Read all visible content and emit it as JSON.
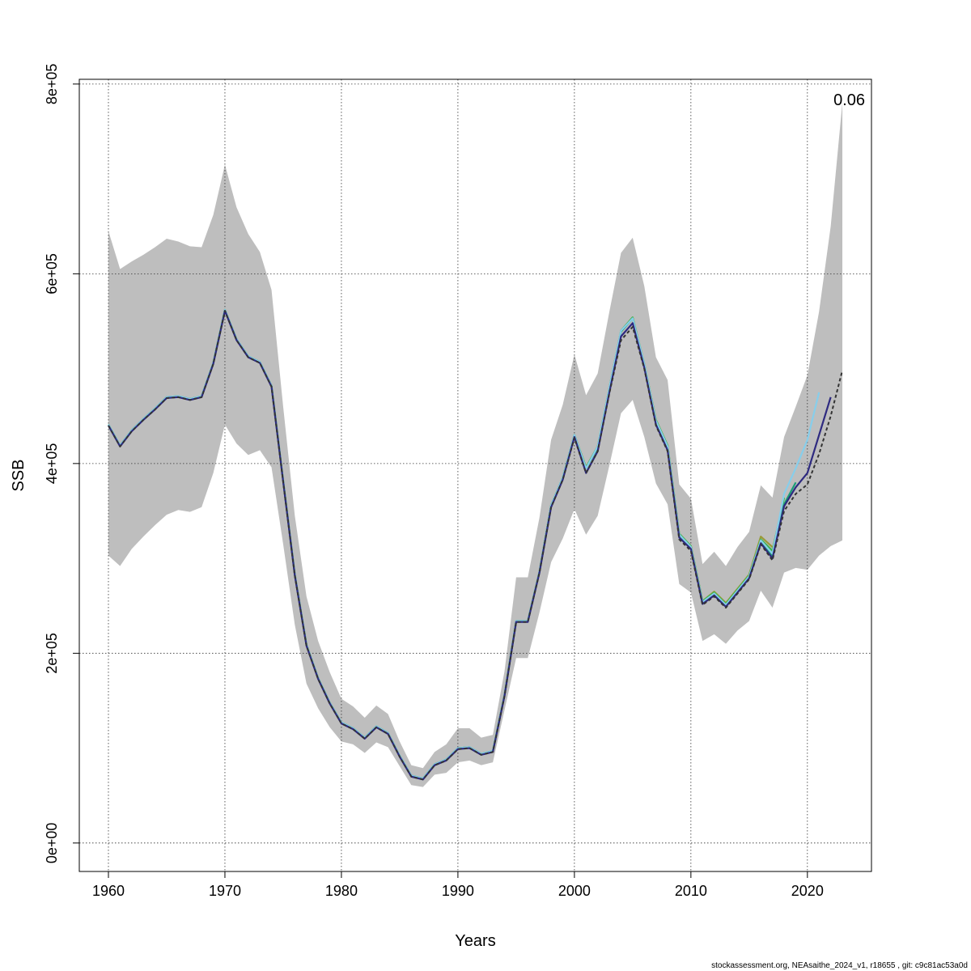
{
  "chart_data": {
    "type": "line",
    "xlabel": "Years",
    "ylabel": "SSB",
    "xlim": [
      1957.5,
      2025.5
    ],
    "ylim": [
      -30000,
      805000
    ],
    "xticks": [
      1960,
      1970,
      1980,
      1990,
      2000,
      2010,
      2020
    ],
    "yticks": [
      0,
      200000,
      400000,
      600000,
      800000
    ],
    "ytick_labels": [
      "0e+00",
      "2e+05",
      "4e+05",
      "6e+05",
      "8e+05"
    ],
    "grid": true,
    "annotation": "0.06",
    "footer": "stockassessment.org, NEAsaithe_2024_v1, r18655 , git: c9c81ac53a0d",
    "colors": {
      "band": "#bebebe",
      "base": "#333333",
      "peel1": "#2e2a80",
      "peel2": "#87ceeb",
      "peel3": "#1a9e77",
      "peel4": "#3cb44b",
      "peel5": "#9a9a3a"
    },
    "x": [
      1960,
      1961,
      1962,
      1963,
      1964,
      1965,
      1966,
      1967,
      1968,
      1969,
      1970,
      1971,
      1972,
      1973,
      1974,
      1975,
      1976,
      1977,
      1978,
      1979,
      1980,
      1981,
      1982,
      1983,
      1984,
      1985,
      1986,
      1987,
      1988,
      1989,
      1990,
      1991,
      1992,
      1993,
      1994,
      1995,
      1996,
      1997,
      1998,
      1999,
      2000,
      2001,
      2002,
      2003,
      2004,
      2005,
      2006,
      2007,
      2008,
      2009,
      2010,
      2011,
      2012,
      2013,
      2014,
      2015,
      2016,
      2017,
      2018,
      2019,
      2020,
      2021,
      2022,
      2023
    ],
    "upper": [
      645000,
      605000,
      613000,
      620000,
      628000,
      637000,
      634000,
      629000,
      628000,
      662000,
      715000,
      670000,
      642000,
      623000,
      583000,
      460000,
      345000,
      260000,
      213000,
      180000,
      152000,
      144000,
      132000,
      145000,
      136000,
      107000,
      82000,
      79000,
      96000,
      104000,
      121000,
      121000,
      111000,
      114000,
      181000,
      280000,
      280000,
      343000,
      425000,
      462000,
      515000,
      472000,
      495000,
      560000,
      622000,
      638000,
      587000,
      512000,
      488000,
      378000,
      363000,
      294000,
      307000,
      292000,
      312000,
      328000,
      377000,
      364000,
      428000,
      460000,
      493000,
      560000,
      650000,
      780000
    ],
    "lower": [
      303000,
      292000,
      310000,
      323000,
      335000,
      346000,
      351000,
      349000,
      354000,
      390000,
      441000,
      421000,
      409000,
      414000,
      396000,
      315000,
      230000,
      168000,
      142000,
      122000,
      107000,
      104000,
      95000,
      106000,
      101000,
      81000,
      61000,
      59000,
      72000,
      74000,
      85000,
      87000,
      82000,
      85000,
      140000,
      195000,
      195000,
      243000,
      296000,
      321000,
      352000,
      325000,
      345000,
      398000,
      453000,
      467000,
      428000,
      379000,
      357000,
      273000,
      264000,
      213000,
      220000,
      210000,
      224000,
      234000,
      266000,
      248000,
      285000,
      290000,
      288000,
      303000,
      313000,
      319000
    ],
    "series": [
      {
        "values": [
          440000,
          418000,
          434000,
          446000,
          457000,
          469000,
          470000,
          467000,
          470000,
          505000,
          561000,
          530000,
          512000,
          506000,
          481000,
          381000,
          282000,
          208000,
          173000,
          147000,
          126000,
          120000,
          110000,
          122000,
          115000,
          91000,
          70000,
          67000,
          82000,
          87000,
          99000,
          100000,
          93000,
          96000,
          155000,
          233000,
          233000,
          285000,
          354000,
          383000,
          427000,
          390000,
          413000,
          474000,
          530000,
          544000,
          500000,
          440000,
          413000,
          320000,
          308000,
          251000,
          260000,
          248000,
          263000,
          278000,
          315000,
          298000,
          350000,
          368000,
          378000,
          410000,
          450000,
          498000
        ]
      },
      {
        "values": [
          440000,
          418000,
          434000,
          446000,
          457000,
          469000,
          470000,
          467000,
          470000,
          505000,
          561000,
          530000,
          512000,
          506000,
          481000,
          381000,
          282000,
          208000,
          173000,
          147000,
          126000,
          120000,
          110000,
          122000,
          115000,
          91000,
          70000,
          67000,
          82000,
          87000,
          99000,
          100000,
          93000,
          96000,
          155000,
          233000,
          233000,
          285000,
          354000,
          383000,
          428000,
          390000,
          413000,
          475000,
          534000,
          548000,
          501000,
          441000,
          414000,
          322000,
          310000,
          252000,
          261000,
          249000,
          264000,
          279000,
          316000,
          300000,
          355000,
          375000,
          390000,
          430000,
          470000,
          null
        ]
      },
      {
        "values": [
          441000,
          419000,
          435000,
          447000,
          458000,
          470000,
          471000,
          468000,
          471000,
          506000,
          562000,
          531000,
          513000,
          507000,
          482000,
          382000,
          283000,
          209000,
          174000,
          148000,
          127000,
          121000,
          111000,
          123000,
          116000,
          92000,
          71000,
          68000,
          83000,
          88000,
          100000,
          101000,
          94000,
          97000,
          156000,
          234000,
          234000,
          286000,
          356000,
          385000,
          430000,
          395000,
          418000,
          480000,
          540000,
          553000,
          505000,
          445000,
          418000,
          325000,
          312000,
          254000,
          263000,
          251000,
          266000,
          281000,
          319000,
          305000,
          368000,
          395000,
          425000,
          475000,
          null,
          null
        ]
      },
      {
        "values": [
          441000,
          419000,
          435000,
          447000,
          458000,
          470000,
          471000,
          468000,
          471000,
          506000,
          562000,
          531000,
          513000,
          507000,
          482000,
          382000,
          283000,
          209000,
          174000,
          148000,
          127000,
          121000,
          111000,
          123000,
          116000,
          92000,
          71000,
          68000,
          83000,
          88000,
          100000,
          101000,
          94000,
          97000,
          156000,
          234000,
          234000,
          286000,
          356000,
          385000,
          430000,
          395000,
          417000,
          479000,
          539000,
          553000,
          504000,
          444000,
          417000,
          324000,
          311000,
          253000,
          262000,
          250000,
          265000,
          280000,
          317000,
          302000,
          357000,
          380000,
          null,
          null,
          null,
          null
        ]
      },
      {
        "values": [
          441000,
          419000,
          435000,
          447000,
          458000,
          470000,
          471000,
          468000,
          471000,
          506000,
          562000,
          531000,
          513000,
          507000,
          482000,
          382000,
          283000,
          209000,
          174000,
          148000,
          127000,
          121000,
          111000,
          123000,
          116000,
          92000,
          71000,
          68000,
          83000,
          88000,
          100000,
          101000,
          94000,
          97000,
          156000,
          234000,
          234000,
          286000,
          356000,
          385000,
          430000,
          396000,
          418000,
          480000,
          540000,
          554000,
          505000,
          446000,
          419000,
          326000,
          313000,
          255000,
          264000,
          252000,
          267000,
          282000,
          320000,
          308000,
          364000,
          null,
          null,
          null,
          null,
          null
        ]
      },
      {
        "values": [
          441000,
          419000,
          435000,
          447000,
          458000,
          470000,
          471000,
          468000,
          471000,
          506000,
          562000,
          531000,
          513000,
          507000,
          482000,
          382000,
          283000,
          209000,
          174000,
          148000,
          127000,
          121000,
          111000,
          123000,
          116000,
          92000,
          71000,
          68000,
          83000,
          88000,
          100000,
          101000,
          94000,
          97000,
          156000,
          234000,
          234000,
          286000,
          356000,
          385000,
          430000,
          396000,
          418000,
          480000,
          540000,
          554000,
          505000,
          446000,
          419000,
          326000,
          313000,
          255000,
          265000,
          253000,
          268000,
          283000,
          323000,
          312000,
          null,
          null,
          null,
          null,
          null,
          null
        ]
      }
    ]
  }
}
